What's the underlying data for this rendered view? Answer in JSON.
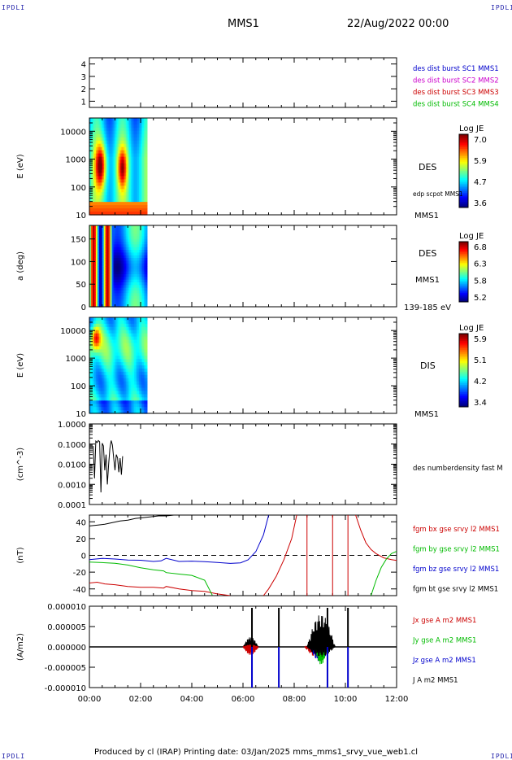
{
  "corner_labels": {
    "top_left": "IPDLI",
    "top_right": "IPDLI",
    "bottom_left": "IPDLI",
    "bottom_right": "IPDLI"
  },
  "header": {
    "spacecraft": "MMS1",
    "date": "22/Aug/2022 00:00"
  },
  "footer": {
    "text": "Produced by cl (IRAP)   Printing date: 03/Jan/2025   mms_mms1_srvy_vue_web1.cl"
  },
  "colors": {
    "blue": "#0000cc",
    "magenta": "#cc00cc",
    "red": "#cc0000",
    "green": "#00bb00",
    "black": "#000000",
    "cyan_spec": "#66e0ff"
  },
  "chart_data": [
    {
      "type": "line",
      "panel": "spacecraft_position",
      "ylim": [
        0.5,
        4.5
      ],
      "yticks": [
        "4",
        "3",
        "2",
        "1"
      ],
      "ytick_values": [
        4,
        3,
        2,
        1
      ],
      "legend": [
        {
          "name": "des dist burst SC1 MMS1",
          "color": "#0000cc"
        },
        {
          "name": "des dist burst SC2 MMS2",
          "color": "#cc00cc"
        },
        {
          "name": "des dist burst SC3 MMS3",
          "color": "#cc0000"
        },
        {
          "name": "des dist burst SC4 MMS4",
          "color": "#00bb00"
        }
      ]
    },
    {
      "type": "heatmap",
      "panel": "des_energy",
      "ylabel": "E (eV)",
      "yscale": "log",
      "ylim": [
        10,
        30000
      ],
      "yticks": [
        "10000",
        "1000",
        "100",
        "10"
      ],
      "ytick_values": [
        10000,
        1000,
        100,
        10
      ],
      "data_xrange_hours": [
        0,
        2.25
      ],
      "side_label": "DES",
      "side_note": "edp scpot MMS1",
      "bottom_right_label": "MMS1",
      "colorbar": {
        "title": "Log JE",
        "ticks": [
          "7.0",
          "5.9",
          "4.7",
          "3.6"
        ],
        "range": [
          3.6,
          7.0
        ]
      }
    },
    {
      "type": "heatmap",
      "panel": "des_pitch",
      "ylabel": "a (deg)",
      "ylim": [
        0,
        180
      ],
      "yticks": [
        "150",
        "100",
        "50",
        "0"
      ],
      "ytick_values": [
        150,
        100,
        50,
        0
      ],
      "data_xrange_hours": [
        0,
        2.25
      ],
      "side_label": "DES",
      "side_label2": "MMS1",
      "bottom_right_label": "139-185 eV",
      "colorbar": {
        "title": "Log JE",
        "ticks": [
          "6.8",
          "6.3",
          "5.8",
          "5.2"
        ],
        "range": [
          5.2,
          6.8
        ]
      }
    },
    {
      "type": "heatmap",
      "panel": "dis_energy",
      "ylabel": "E (eV)",
      "yscale": "log",
      "ylim": [
        10,
        30000
      ],
      "yticks": [
        "10000",
        "1000",
        "100",
        "10"
      ],
      "ytick_values": [
        10000,
        1000,
        100,
        10
      ],
      "data_xrange_hours": [
        0,
        2.25
      ],
      "side_label": "DIS",
      "bottom_right_label": "MMS1",
      "colorbar": {
        "title": "Log JE",
        "ticks": [
          "5.9",
          "5.1",
          "4.2",
          "3.4"
        ],
        "range": [
          3.4,
          5.9
        ]
      }
    },
    {
      "type": "line",
      "panel": "density",
      "ylabel": "(cm^-3)",
      "yscale": "log",
      "ylim": [
        0.0001,
        1.0
      ],
      "yticks": [
        "1.0000",
        "0.1000",
        "0.0100",
        "0.0010",
        "0.0001"
      ],
      "ytick_values": [
        1.0,
        0.1,
        0.01,
        0.001,
        0.0001
      ],
      "legend": [
        {
          "name": "des numberdensity fast M",
          "color": "#000000"
        }
      ],
      "series": [
        {
          "name": "des numberdensity fast M",
          "x": [
            0.15,
            0.2,
            0.25,
            0.3,
            0.35,
            0.4,
            0.45,
            0.5,
            0.55,
            0.6,
            0.65,
            0.7,
            0.75,
            0.8,
            0.85,
            0.9,
            0.95,
            1.0,
            1.05,
            1.1,
            1.15,
            1.2,
            1.25,
            1.3
          ],
          "y": [
            0.08,
            0.002,
            0.14,
            0.12,
            0.15,
            0.13,
            0.0004,
            0.11,
            0.08,
            0.005,
            0.03,
            0.001,
            0.009,
            0.06,
            0.15,
            0.09,
            0.02,
            0.005,
            0.03,
            0.02,
            0.004,
            0.02,
            0.003,
            0.025
          ]
        }
      ]
    },
    {
      "type": "line",
      "panel": "magnetic_field",
      "ylabel": "(nT)",
      "ylim": [
        -48,
        48
      ],
      "yticks": [
        "40",
        "20",
        "0",
        "-20",
        "-40"
      ],
      "ytick_values": [
        40,
        20,
        0,
        -20,
        -40
      ],
      "zero_line": true,
      "legend": [
        {
          "name": "fgm bx gse srvy l2 MMS1",
          "color": "#cc0000"
        },
        {
          "name": "fgm by gse srvy l2 MMS1",
          "color": "#00bb00"
        },
        {
          "name": "fgm bz gse srvy l2 MMS1",
          "color": "#0000cc"
        },
        {
          "name": "fgm bt gse srvy l2 MMS1",
          "color": "#000000"
        }
      ],
      "series": [
        {
          "name": "fgm bt gse srvy l2 MMS1",
          "x": [
            0,
            0.3,
            0.6,
            0.9,
            1.2,
            1.5,
            1.8,
            2.1,
            2.4,
            2.7,
            3.0,
            3.3,
            3.5
          ],
          "y": [
            35,
            36,
            37,
            39,
            41,
            42,
            44,
            45,
            46,
            47,
            47,
            48,
            48
          ]
        },
        {
          "name": "fgm bx gse srvy l2 MMS1",
          "x": [
            0,
            0.3,
            0.6,
            1.0,
            1.5,
            2.0,
            2.5,
            2.9,
            3.0,
            3.5,
            4.0,
            4.5,
            5.0,
            5.5
          ],
          "y": [
            -33,
            -32,
            -34,
            -35,
            -37,
            -38,
            -38,
            -39,
            -37,
            -40,
            -42,
            -43,
            -46,
            -48
          ]
        },
        {
          "name": "fgm bx gse srvy l2 MMS1 (late)",
          "x": [
            6.8,
            7.0,
            7.3,
            7.6,
            7.9,
            8.1
          ],
          "y": [
            -48,
            -40,
            -25,
            -5,
            20,
            48
          ]
        },
        {
          "name": "fgm bx gse srvy l2 MMS1 (tail)",
          "x": [
            10.4,
            10.6,
            10.8,
            11.0,
            11.2,
            11.5,
            11.8,
            12.0
          ],
          "y": [
            48,
            30,
            15,
            7,
            2,
            -3,
            -5,
            -6
          ]
        },
        {
          "name": "fgm by gse srvy l2 MMS1",
          "x": [
            0,
            0.5,
            1.0,
            1.5,
            2.0,
            2.5,
            2.9,
            3.0,
            3.5,
            4.0,
            4.5,
            4.8
          ],
          "y": [
            -8,
            -9,
            -10,
            -12,
            -15,
            -17,
            -18,
            -20,
            -22,
            -24,
            -30,
            -48
          ]
        },
        {
          "name": "fgm by gse srvy l2 MMS1 (tail)",
          "x": [
            11.0,
            11.2,
            11.4,
            11.6,
            11.8,
            12.0
          ],
          "y": [
            -48,
            -30,
            -15,
            -5,
            2,
            5
          ]
        },
        {
          "name": "fgm bz gse srvy l2 MMS1",
          "x": [
            0,
            0.5,
            1.0,
            1.5,
            2.0,
            2.5,
            2.8,
            3.0,
            3.5,
            4.0,
            4.5,
            5.0,
            5.5,
            5.9,
            6.2,
            6.5,
            6.8,
            7.0
          ],
          "y": [
            -5,
            -4,
            -5,
            -6,
            -6,
            -7,
            -6,
            -3,
            -7,
            -7,
            -8,
            -9,
            -10,
            -9,
            -5,
            5,
            25,
            48
          ]
        }
      ],
      "spikes": [
        {
          "x": 8.5,
          "color": "#cc0000"
        },
        {
          "x": 9.5,
          "color": "#cc0000"
        },
        {
          "x": 10.1,
          "color": "#cc0000"
        }
      ]
    },
    {
      "type": "line",
      "panel": "current_density",
      "ylabel": "(A/m2)",
      "ylim": [
        -1e-05,
        1e-05
      ],
      "yticks": [
        "0.000010",
        "0.000005",
        "0.000000",
        "-0.000005",
        "-0.000010"
      ],
      "ytick_values": [
        1e-05,
        5e-06,
        0,
        -5e-06,
        -1e-05
      ],
      "xticks": [
        "00:00",
        "02:00",
        "04:00",
        "06:00",
        "08:00",
        "10:00",
        "12:00"
      ],
      "xtick_values_hours": [
        0,
        2,
        4,
        6,
        8,
        10,
        12
      ],
      "legend": [
        {
          "name": "Jx gse A m2 MMS1",
          "color": "#cc0000"
        },
        {
          "name": "Jy gse A m2 MMS1",
          "color": "#00bb00"
        },
        {
          "name": "Jz gse A m2 MMS1",
          "color": "#0000cc"
        },
        {
          "name": "J A m2 MMS1",
          "color": "#000000"
        }
      ],
      "events_hours": [
        6.35,
        7.4,
        9.3,
        10.1
      ]
    }
  ]
}
